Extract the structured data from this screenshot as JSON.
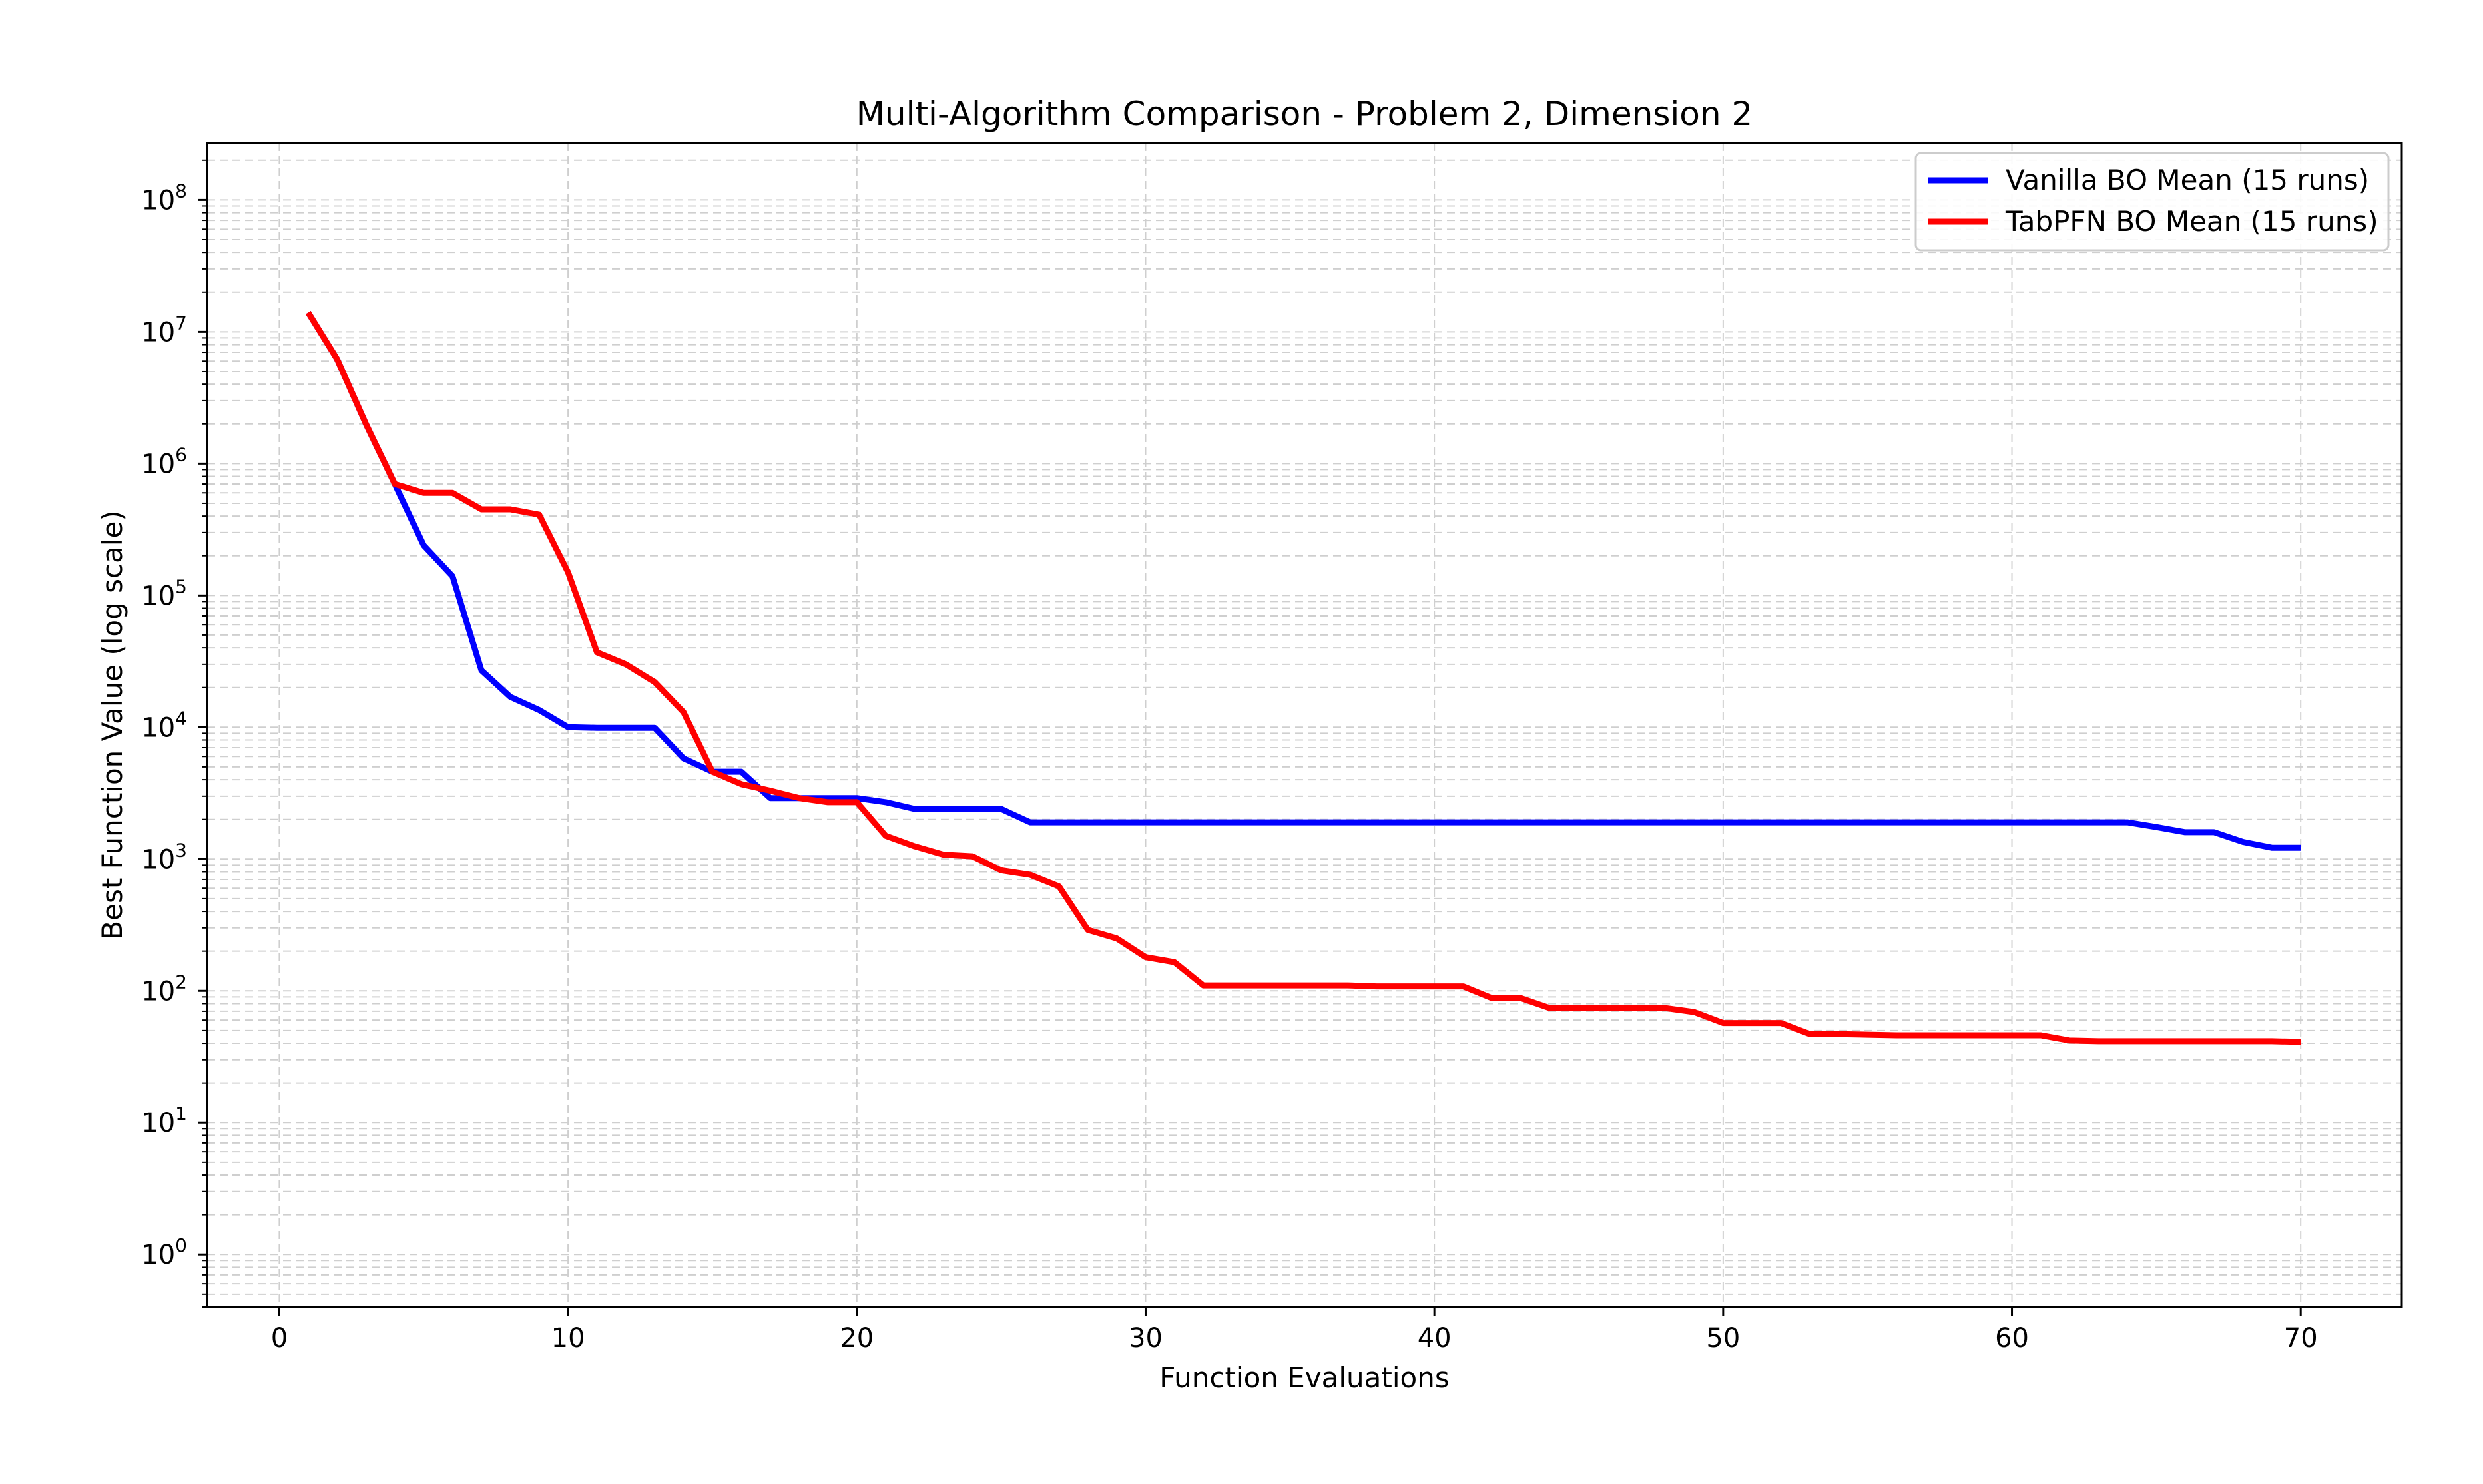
{
  "chart_data": {
    "type": "line",
    "title": "Multi-Algorithm Comparison - Problem 2, Dimension 2",
    "xlabel": "Function Evaluations",
    "ylabel": "Best Function Value (log scale)",
    "xlim": [
      -2.5,
      73.5
    ],
    "ylim": [
      0.4,
      270000000.0
    ],
    "y_scale": "log",
    "grid": true,
    "legend_position": "top-right",
    "x_ticks": [
      0,
      10,
      20,
      30,
      40,
      50,
      60,
      70
    ],
    "y_tick_exponents": [
      0,
      1,
      2,
      3,
      4,
      5,
      6,
      7,
      8
    ],
    "y_tick_base": "10",
    "series": [
      {
        "name": "Vanilla BO Mean (15 runs)",
        "color": "#0000ff",
        "x": [
          1,
          2,
          3,
          4,
          5,
          6,
          7,
          8,
          9,
          10,
          11,
          12,
          13,
          14,
          15,
          16,
          17,
          18,
          19,
          20,
          21,
          22,
          23,
          24,
          25,
          26,
          27,
          28,
          29,
          30,
          31,
          32,
          33,
          34,
          35,
          36,
          37,
          38,
          39,
          40,
          41,
          42,
          43,
          44,
          45,
          46,
          47,
          48,
          49,
          50,
          51,
          52,
          53,
          54,
          55,
          56,
          57,
          58,
          59,
          60,
          61,
          62,
          63,
          64,
          65,
          66,
          67,
          68,
          69,
          70
        ],
        "values": [
          14000000,
          6200000,
          2000000,
          700000,
          240000,
          140000,
          27000,
          17000,
          13500,
          10000,
          9900,
          9900,
          9900,
          5800,
          4600,
          4600,
          2900,
          2900,
          2900,
          2900,
          2700,
          2400,
          2400,
          2400,
          2400,
          1900,
          1900,
          1900,
          1900,
          1900,
          1900,
          1900,
          1900,
          1900,
          1900,
          1900,
          1900,
          1900,
          1900,
          1900,
          1900,
          1900,
          1900,
          1900,
          1900,
          1900,
          1900,
          1900,
          1900,
          1900,
          1900,
          1900,
          1900,
          1900,
          1900,
          1900,
          1900,
          1900,
          1900,
          1900,
          1900,
          1900,
          1900,
          1900,
          1750,
          1600,
          1600,
          1350,
          1220,
          1220
        ]
      },
      {
        "name": "TabPFN BO Mean (15 runs)",
        "color": "#ff0000",
        "x": [
          1,
          2,
          3,
          4,
          5,
          6,
          7,
          8,
          9,
          10,
          11,
          12,
          13,
          14,
          15,
          16,
          17,
          18,
          19,
          20,
          21,
          22,
          23,
          24,
          25,
          26,
          27,
          28,
          29,
          30,
          31,
          32,
          33,
          34,
          35,
          36,
          37,
          38,
          39,
          40,
          41,
          42,
          43,
          44,
          45,
          46,
          47,
          48,
          49,
          50,
          51,
          52,
          53,
          54,
          55,
          56,
          57,
          58,
          59,
          60,
          61,
          62,
          63,
          64,
          65,
          66,
          67,
          68,
          69,
          70
        ],
        "values": [
          14000000,
          6200000,
          2000000,
          700000,
          600000,
          600000,
          450000,
          450000,
          410000,
          150000,
          37000,
          30000,
          22000,
          13000,
          4600,
          3700,
          3300,
          2900,
          2700,
          2700,
          1500,
          1250,
          1080,
          1050,
          820,
          760,
          620,
          290,
          250,
          180,
          165,
          110,
          110,
          110,
          110,
          110,
          110,
          108,
          108,
          108,
          108,
          88,
          88,
          74,
          74,
          74,
          74,
          74,
          69,
          57,
          57,
          57,
          47,
          47,
          46.5,
          46,
          46,
          46,
          46,
          46,
          46,
          42,
          41.5,
          41.5,
          41.5,
          41.5,
          41.5,
          41.5,
          41.5,
          41
        ]
      }
    ]
  }
}
